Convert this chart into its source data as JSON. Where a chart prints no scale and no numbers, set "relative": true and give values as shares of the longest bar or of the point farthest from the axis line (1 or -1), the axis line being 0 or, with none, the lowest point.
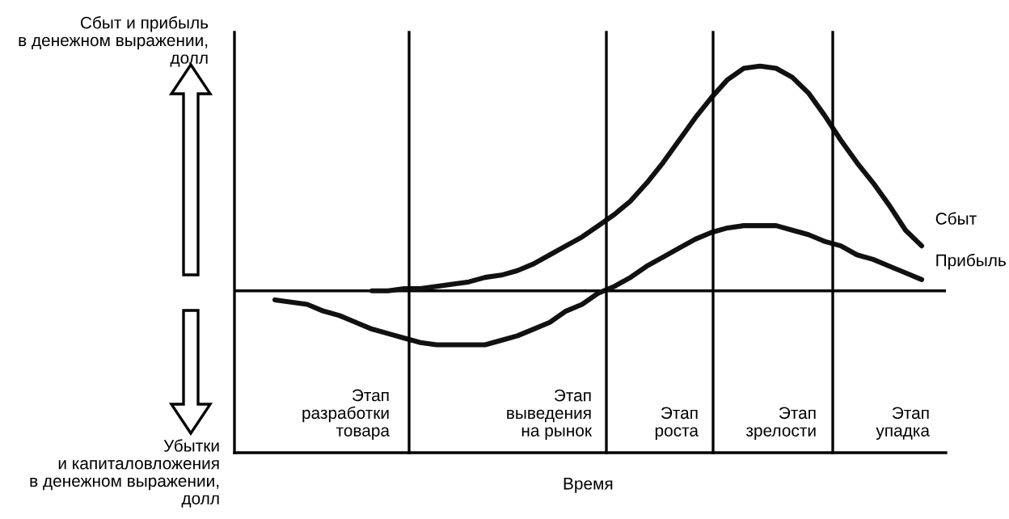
{
  "chart_data": {
    "type": "line",
    "relative": true,
    "categories": [
      null,
      null,
      null,
      null,
      null,
      null,
      null,
      null,
      null,
      null,
      null,
      null,
      null,
      null,
      null,
      null,
      null,
      null,
      null,
      null,
      null,
      null,
      null,
      null,
      null,
      null,
      null,
      null,
      null,
      null,
      null,
      null,
      null,
      null,
      null,
      null,
      null,
      null,
      null,
      null,
      null,
      null,
      null,
      null
    ],
    "series": [
      {
        "name": "Сбыт",
        "color": "#111111",
        "values": [
          null,
          null,
          null,
          null,
          null,
          null,
          null,
          null,
          0,
          0,
          0.01,
          0.01,
          0.02,
          0.03,
          0.04,
          0.06,
          0.07,
          0.09,
          0.12,
          0.16,
          0.2,
          0.24,
          0.29,
          0.34,
          0.4,
          0.48,
          0.57,
          0.67,
          0.77,
          0.86,
          0.94,
          0.99,
          1,
          0.99,
          0.95,
          0.88,
          0.78,
          0.67,
          0.57,
          0.48,
          0.38,
          0.27,
          0.2,
          null
        ]
      },
      {
        "name": "Прибыль",
        "color": "#111111",
        "values": [
          null,
          null,
          -0.04,
          -0.05,
          -0.06,
          -0.09,
          -0.11,
          -0.14,
          -0.17,
          -0.19,
          -0.21,
          -0.23,
          -0.24,
          -0.24,
          -0.24,
          -0.24,
          -0.22,
          -0.2,
          -0.17,
          -0.14,
          -0.09,
          -0.06,
          -0.01,
          0.02,
          0.06,
          0.11,
          0.15,
          0.19,
          0.23,
          0.26,
          0.28,
          0.29,
          0.29,
          0.29,
          0.27,
          0.25,
          0.22,
          0.2,
          0.16,
          0.14,
          0.11,
          0.08,
          0.05,
          null
        ]
      }
    ],
    "annotations": [
      "Сбыт и прибыль\nв денежном выражении,\nдолл",
      "Убытки\nи капиталовложения\nв денежном выражении,\nдолл",
      "Время",
      "Этап\nразработки\nтовара",
      "Этап\nвыведения\nна рынок",
      "Этап\nроста",
      "Этап\nзрелости",
      "Этап\nупадка"
    ],
    "grid": false,
    "legend": false,
    "marker": "none",
    "line_style": "solid"
  }
}
